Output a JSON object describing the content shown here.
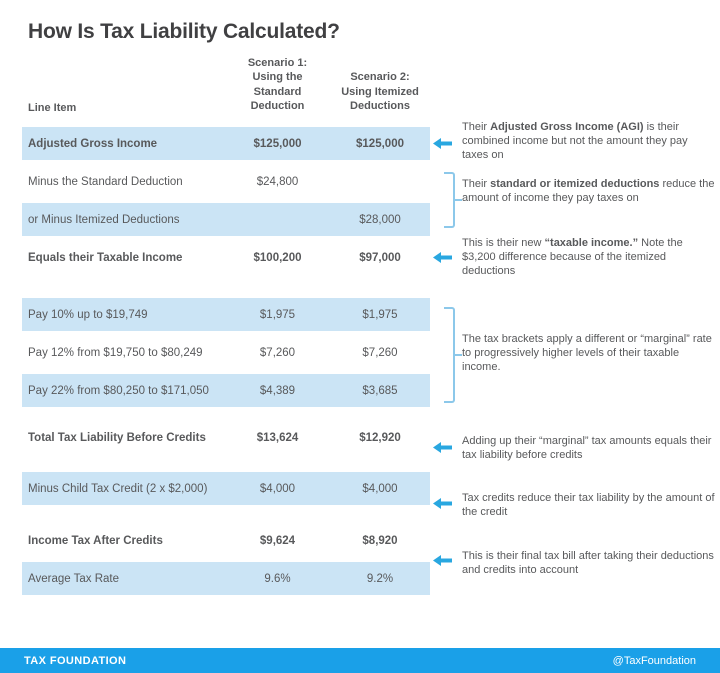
{
  "title": "How Is Tax Liability Calculated?",
  "colors": {
    "accent_blue": "#29A7E0",
    "bracket_blue": "#8CC8EA",
    "row_shade_blue": "#CBE4F5",
    "footer_blue": "#1AA0E8",
    "text_gray": "#58595B",
    "title_gray": "#404042"
  },
  "table": {
    "headers": {
      "line_item": "Line Item",
      "scenario1": "Scenario 1:\nUsing the\nStandard\nDeduction",
      "scenario2": "Scenario 2:\nUsing Itemized\nDeductions"
    },
    "sections": [
      {
        "rows": [
          {
            "label": "Adjusted Gross Income",
            "s1": "$125,000",
            "s2": "$125,000",
            "shaded": true,
            "bold": true
          },
          {
            "label": "Minus the Standard Deduction",
            "s1": "$24,800",
            "s2": "",
            "shaded": false,
            "bold": false
          },
          {
            "label": "or Minus Itemized Deductions",
            "s1": "",
            "s2": "$28,000",
            "shaded": true,
            "bold": false
          },
          {
            "label": "Equals their Taxable Income",
            "s1": "$100,200",
            "s2": "$97,000",
            "shaded": false,
            "bold": true
          }
        ]
      },
      {
        "rows": [
          {
            "label": "Pay 10% up to $19,749",
            "s1": "$1,975",
            "s2": "$1,975",
            "shaded": true,
            "bold": false
          },
          {
            "label": "Pay 12% from $19,750 to $80,249",
            "s1": "$7,260",
            "s2": "$7,260",
            "shaded": false,
            "bold": false
          },
          {
            "label": "Pay 22% from $80,250 to $171,050",
            "s1": "$4,389",
            "s2": "$3,685",
            "shaded": true,
            "bold": false
          }
        ]
      },
      {
        "rows": [
          {
            "label": "Total Tax Liability Before Credits",
            "s1": "$13,624",
            "s2": "$12,920",
            "shaded": false,
            "bold": true
          }
        ]
      },
      {
        "rows": [
          {
            "label": "Minus Child Tax Credit (2 x $2,000)",
            "s1": "$4,000",
            "s2": "$4,000",
            "shaded": true,
            "bold": false
          }
        ]
      },
      {
        "rows": [
          {
            "label": "Income Tax After Credits",
            "s1": "$9,624",
            "s2": "$8,920",
            "shaded": false,
            "bold": true
          },
          {
            "label": "Average Tax Rate",
            "s1": "9.6%",
            "s2": "9.2%",
            "shaded": true,
            "bold": false
          }
        ]
      }
    ]
  },
  "annotations": [
    {
      "connector": "arrow",
      "segments": [
        {
          "t": "Their ",
          "b": false
        },
        {
          "t": "Adjusted Gross Income (AGI)",
          "b": true
        },
        {
          "t": " is their combined income but not the amount they pay taxes on",
          "b": false
        }
      ]
    },
    {
      "connector": "bracket",
      "segments": [
        {
          "t": "Their ",
          "b": false
        },
        {
          "t": "standard or itemized deductions",
          "b": true
        },
        {
          "t": " reduce the amount of income they pay taxes on",
          "b": false
        }
      ]
    },
    {
      "connector": "arrow",
      "segments": [
        {
          "t": "This is their new ",
          "b": false
        },
        {
          "t": "“taxable income.”",
          "b": true
        },
        {
          "t": " Note the $3,200 difference because of the itemized deductions",
          "b": false
        }
      ]
    },
    {
      "connector": "bracket",
      "segments": [
        {
          "t": "The tax brackets apply a different or “marginal” rate to progressively higher levels of their taxable income.",
          "b": false
        }
      ]
    },
    {
      "connector": "arrow",
      "segments": [
        {
          "t": "Adding up their “marginal” tax amounts equals their tax liability before credits",
          "b": false
        }
      ]
    },
    {
      "connector": "arrow",
      "segments": [
        {
          "t": "Tax credits reduce their tax liability by the amount of the credit",
          "b": false
        }
      ]
    },
    {
      "connector": "arrow",
      "segments": [
        {
          "t": "This is their final tax bill after taking their deductions and credits into account",
          "b": false
        }
      ]
    }
  ],
  "footer": {
    "brand": "TAX FOUNDATION",
    "handle": "@TaxFoundation"
  },
  "chart_data": {
    "type": "table",
    "title": "How Is Tax Liability Calculated?",
    "columns": [
      "Line Item",
      "Scenario 1: Using the Standard Deduction",
      "Scenario 2: Using Itemized Deductions"
    ],
    "rows": [
      [
        "Adjusted Gross Income",
        "$125,000",
        "$125,000"
      ],
      [
        "Minus the Standard Deduction",
        "$24,800",
        ""
      ],
      [
        "or Minus Itemized Deductions",
        "",
        "$28,000"
      ],
      [
        "Equals their Taxable Income",
        "$100,200",
        "$97,000"
      ],
      [
        "Pay 10% up to $19,749",
        "$1,975",
        "$1,975"
      ],
      [
        "Pay 12% from $19,750 to $80,249",
        "$7,260",
        "$7,260"
      ],
      [
        "Pay 22% from $80,250 to $171,050",
        "$4,389",
        "$3,685"
      ],
      [
        "Total Tax Liability Before Credits",
        "$13,624",
        "$12,920"
      ],
      [
        "Minus Child Tax Credit (2 x $2,000)",
        "$4,000",
        "$4,000"
      ],
      [
        "Income Tax After Credits",
        "$9,624",
        "$8,920"
      ],
      [
        "Average Tax Rate",
        "9.6%",
        "9.2%"
      ]
    ],
    "annotations": [
      "Their Adjusted Gross Income (AGI) is their combined income but not the amount they pay taxes on",
      "Their standard or itemized deductions reduce the amount of income they pay taxes on",
      "This is their new “taxable income.” Note the $3,200 difference because of the itemized deductions",
      "The tax brackets apply a different or “marginal” rate to progressively higher levels of their taxable income.",
      "Adding up their “marginal” tax amounts equals their tax liability before credits",
      "Tax credits reduce their tax liability by the amount of the credit",
      "This is their final tax bill after taking their deductions and credits into account"
    ]
  }
}
